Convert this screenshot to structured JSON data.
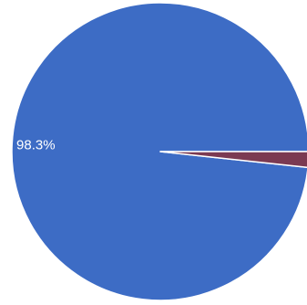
{
  "chart_data": {
    "type": "pie",
    "title": "",
    "slices": [
      {
        "value": 98.3,
        "label": "98.3%",
        "color": "#3d6cc5"
      },
      {
        "value": 1.7,
        "label": "",
        "color": "#7b3a52"
      }
    ],
    "start_angle_deg": 0,
    "direction": "counterclockwise",
    "separator_color": "#ffffff",
    "legend": "none"
  }
}
